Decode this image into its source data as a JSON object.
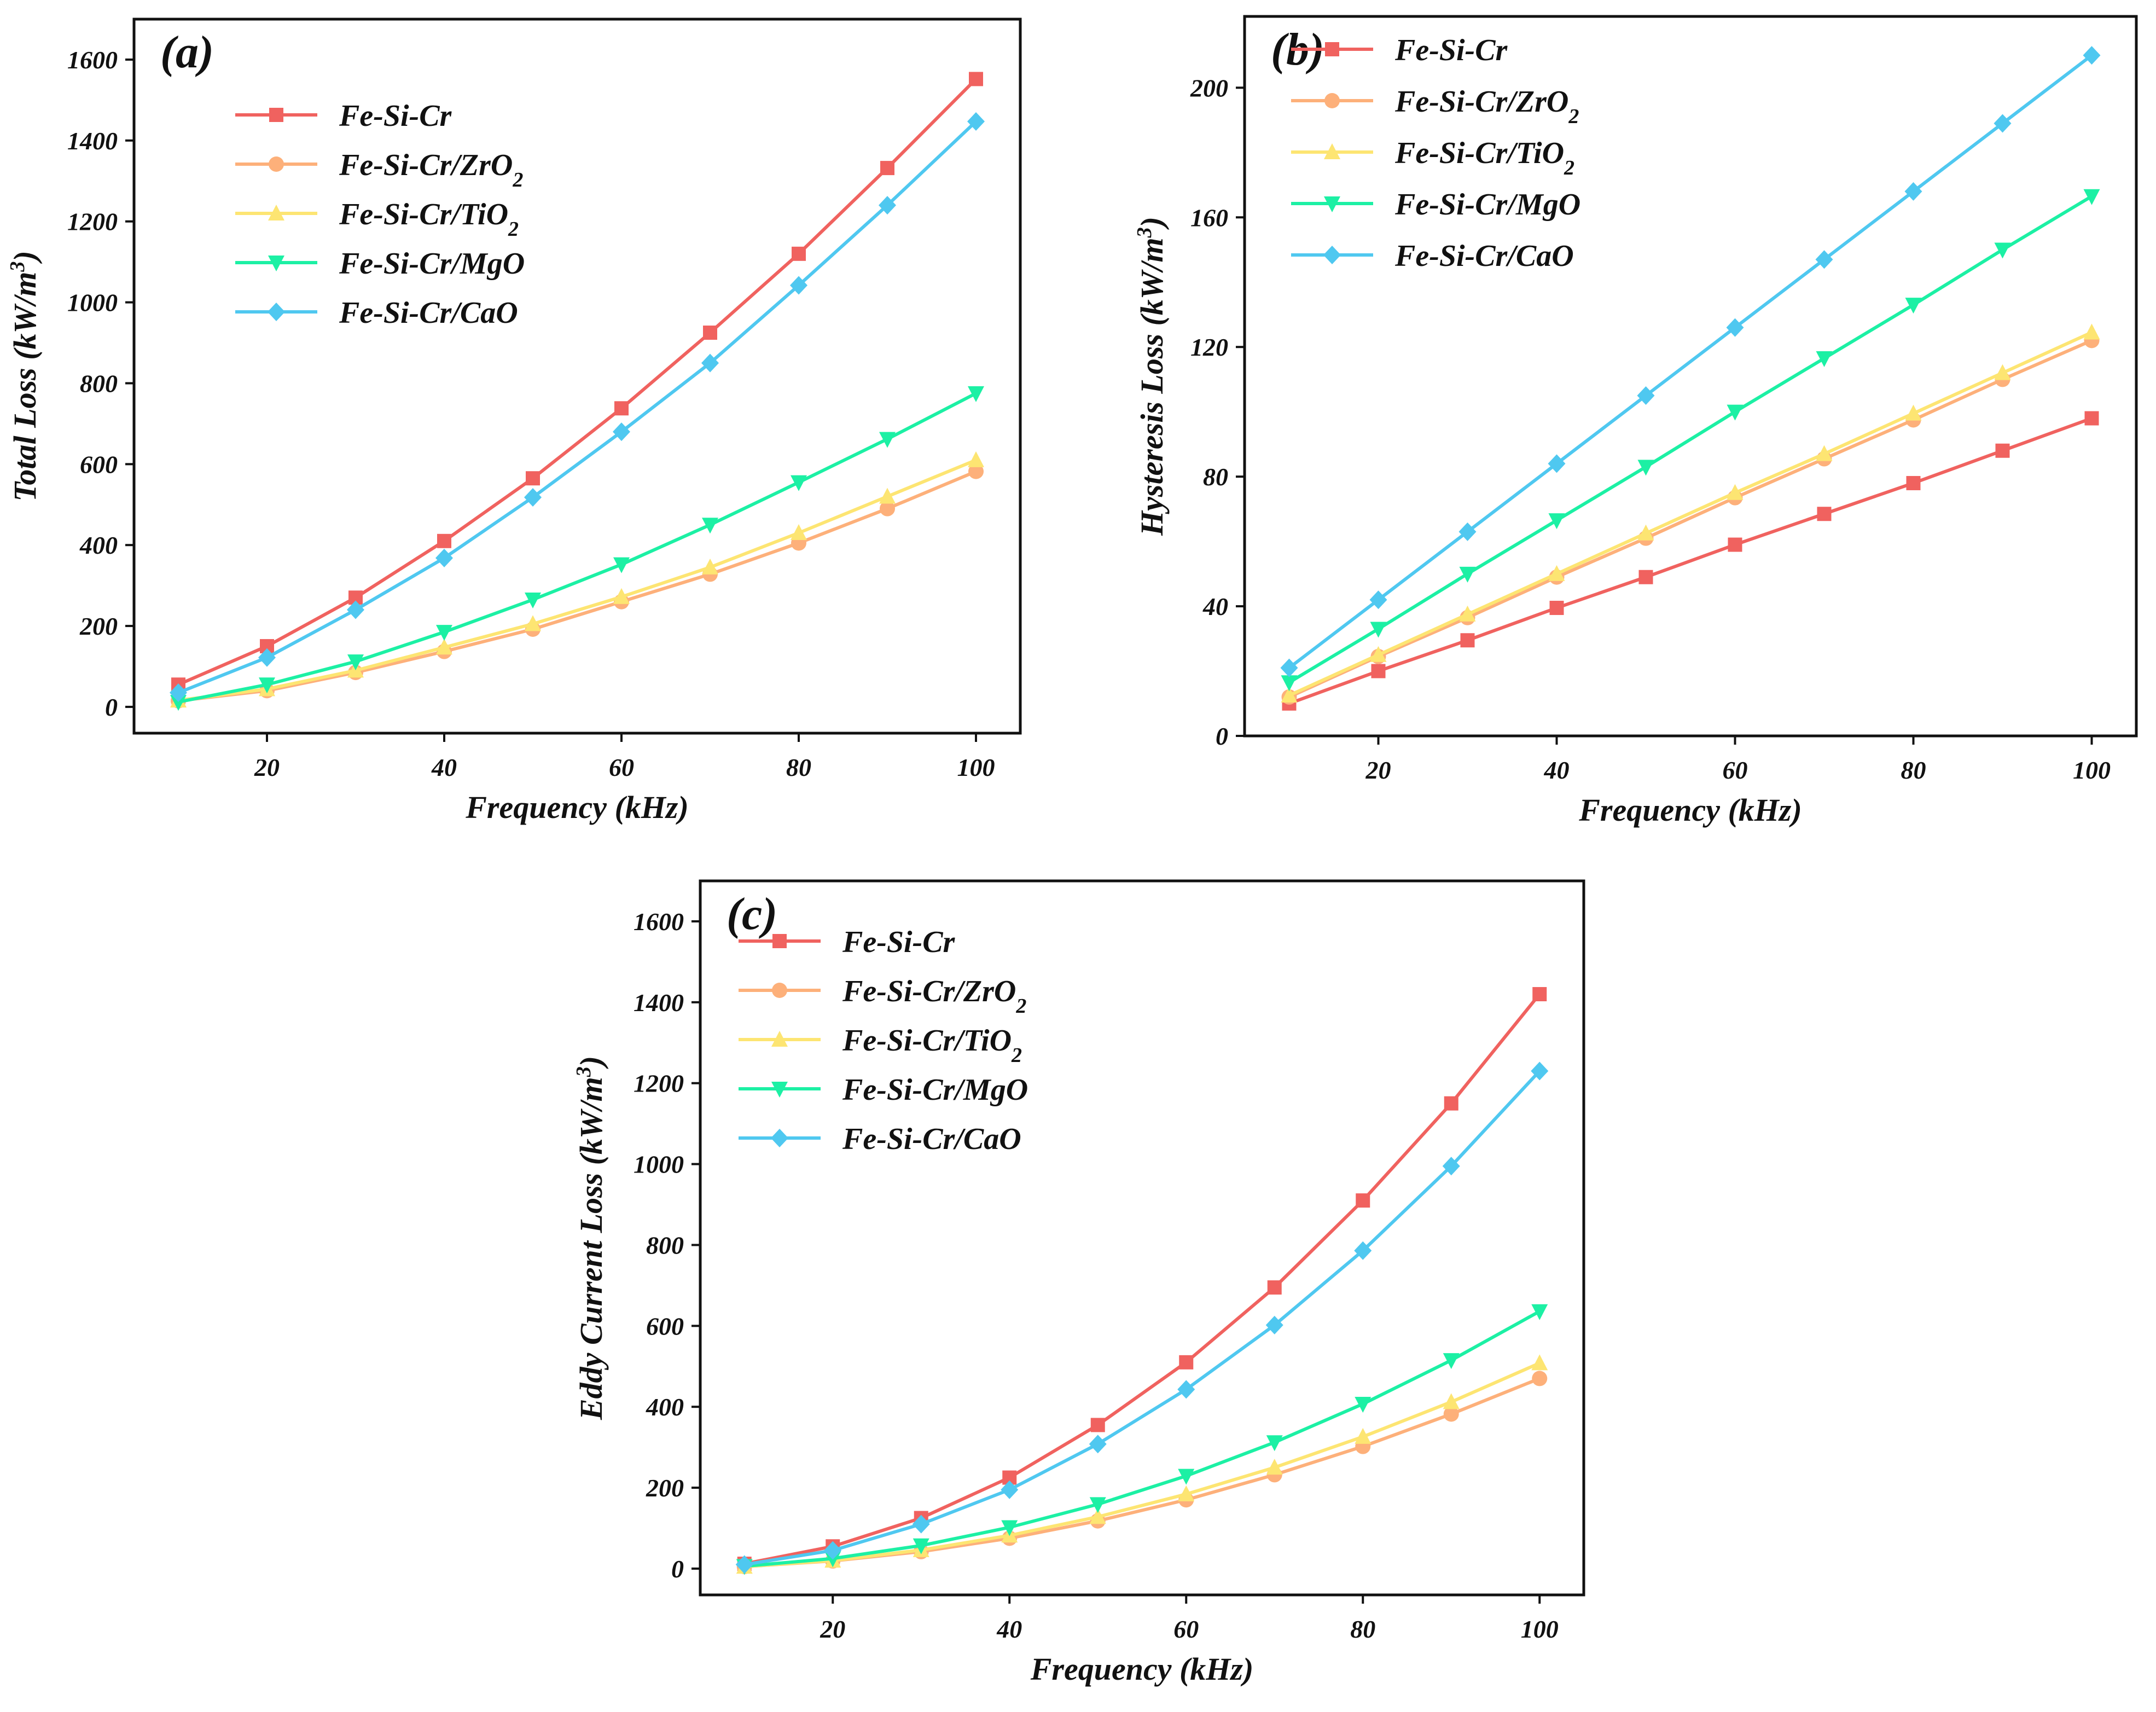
{
  "chart_data": [
    {
      "type": "line",
      "panel_label": "(a)",
      "xlabel": "Frequency (kHz)",
      "ylabel_main": "Total Loss (kW/m",
      "ylabel_sup": "3",
      "ylabel_tail": ")",
      "x": [
        10,
        20,
        30,
        40,
        50,
        60,
        70,
        80,
        90,
        100
      ],
      "xlim": [
        5,
        105
      ],
      "xticks": [
        20,
        40,
        60,
        80,
        100
      ],
      "ylim": [
        -65,
        1700
      ],
      "yticks": [
        0,
        200,
        400,
        600,
        800,
        1000,
        1200,
        1400,
        1600
      ],
      "legend_position": "top-left",
      "series": [
        {
          "name": "Fe-Si-Cr",
          "marker": "square",
          "color": "#f0625f",
          "values": [
            55,
            150,
            270,
            410,
            565,
            738,
            925,
            1120,
            1332,
            1552
          ]
        },
        {
          "name": "Fe-Si-Cr/ZrO",
          "name_sub": "2",
          "marker": "circle",
          "color": "#fdb07a",
          "values": [
            15,
            40,
            85,
            137,
            192,
            260,
            328,
            405,
            490,
            582
          ]
        },
        {
          "name": "Fe-Si-Cr/TiO",
          "name_sub": "2",
          "marker": "triangle-up",
          "color": "#fde572",
          "values": [
            16,
            44,
            90,
            147,
            205,
            272,
            345,
            430,
            520,
            610
          ]
        },
        {
          "name": "Fe-Si-Cr/MgO",
          "marker": "triangle-down",
          "color": "#1cf0a4",
          "values": [
            12,
            55,
            112,
            185,
            265,
            352,
            450,
            555,
            662,
            775
          ]
        },
        {
          "name": "Fe-Si-Cr/CaO",
          "marker": "diamond",
          "color": "#4fc8f0",
          "values": [
            35,
            122,
            240,
            368,
            518,
            680,
            850,
            1042,
            1240,
            1447
          ]
        }
      ]
    },
    {
      "type": "line",
      "panel_label": "(b)",
      "xlabel": "Frequency (kHz)",
      "ylabel_main": "Hysteresis Loss (kW/m",
      "ylabel_sup": "3",
      "ylabel_tail": ")",
      "x": [
        10,
        20,
        30,
        40,
        50,
        60,
        70,
        80,
        90,
        100
      ],
      "xlim": [
        5,
        105
      ],
      "xticks": [
        20,
        40,
        60,
        80,
        100
      ],
      "ylim": [
        0,
        222
      ],
      "yticks": [
        0,
        40,
        80,
        120,
        160,
        200
      ],
      "legend_position": "top-left",
      "series": [
        {
          "name": "Fe-Si-Cr",
          "marker": "square",
          "color": "#f0625f",
          "values": [
            10,
            20,
            29.5,
            39.5,
            49,
            59,
            68.5,
            78,
            88,
            98
          ]
        },
        {
          "name": "Fe-Si-Cr/ZrO",
          "name_sub": "2",
          "marker": "circle",
          "color": "#fdb07a",
          "values": [
            12,
            24.5,
            36.5,
            49,
            61,
            73.5,
            85.5,
            97.5,
            110,
            122
          ]
        },
        {
          "name": "Fe-Si-Cr/TiO",
          "name_sub": "2",
          "marker": "triangle-up",
          "color": "#fde572",
          "values": [
            12.5,
            25,
            37.5,
            50,
            62.5,
            75,
            87,
            99.5,
            112,
            124.5
          ]
        },
        {
          "name": "Fe-Si-Cr/MgO",
          "marker": "triangle-down",
          "color": "#1cf0a4",
          "values": [
            16.5,
            33,
            50,
            66.5,
            83,
            100,
            116.5,
            133,
            150,
            166.5
          ]
        },
        {
          "name": "Fe-Si-Cr/CaO",
          "marker": "diamond",
          "color": "#4fc8f0",
          "values": [
            21,
            42,
            63,
            84,
            105,
            126,
            147,
            168,
            189,
            210
          ]
        }
      ]
    },
    {
      "type": "line",
      "panel_label": "(c)",
      "xlabel": "Frequency (kHz)",
      "ylabel_main": "Eddy Current Loss (kW/m",
      "ylabel_sup": "3",
      "ylabel_tail": ")",
      "x": [
        10,
        20,
        30,
        40,
        50,
        60,
        70,
        80,
        90,
        100
      ],
      "xlim": [
        5,
        105
      ],
      "xticks": [
        20,
        40,
        60,
        80,
        100
      ],
      "ylim": [
        -65,
        1700
      ],
      "yticks": [
        0,
        200,
        400,
        600,
        800,
        1000,
        1200,
        1400,
        1600
      ],
      "legend_position": "top-left",
      "series": [
        {
          "name": "Fe-Si-Cr",
          "marker": "square",
          "color": "#f0625f",
          "values": [
            12,
            55,
            125,
            225,
            355,
            510,
            695,
            910,
            1150,
            1420
          ]
        },
        {
          "name": "Fe-Si-Cr/ZrO",
          "name_sub": "2",
          "marker": "circle",
          "color": "#fdb07a",
          "values": [
            5,
            19,
            42,
            75,
            118,
            170,
            232,
            302,
            382,
            470
          ]
        },
        {
          "name": "Fe-Si-Cr/TiO",
          "name_sub": "2",
          "marker": "triangle-up",
          "color": "#fde572",
          "values": [
            5,
            20,
            46,
            82,
            128,
            184,
            250,
            326,
            412,
            508
          ]
        },
        {
          "name": "Fe-Si-Cr/MgO",
          "marker": "triangle-down",
          "color": "#1cf0a4",
          "values": [
            6,
            25,
            57,
            102,
            159,
            229,
            312,
            407,
            515,
            636
          ]
        },
        {
          "name": "Fe-Si-Cr/CaO",
          "marker": "diamond",
          "color": "#4fc8f0",
          "values": [
            10,
            45,
            110,
            195,
            308,
            443,
            602,
            786,
            995,
            1230
          ]
        }
      ]
    }
  ]
}
